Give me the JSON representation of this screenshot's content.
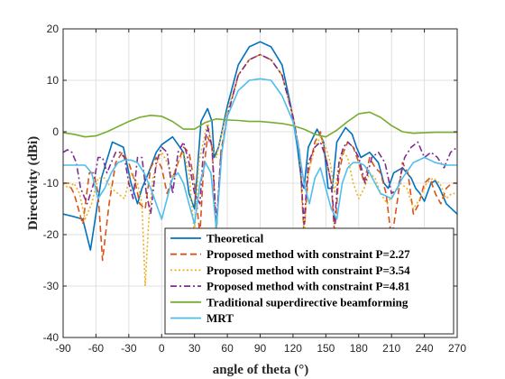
{
  "chart_data": {
    "type": "line",
    "title": "",
    "xlabel": "angle of theta (°)",
    "ylabel": "Directivity (dBi)",
    "xlim": [
      -90,
      270
    ],
    "ylim": [
      -40,
      20
    ],
    "xticks": [
      -90,
      -60,
      -30,
      0,
      30,
      60,
      90,
      120,
      150,
      180,
      210,
      240,
      270
    ],
    "yticks": [
      -40,
      -30,
      -20,
      -10,
      0,
      10,
      20
    ],
    "grid": true,
    "legend_position": "bottom-right",
    "series": [
      {
        "name": "Theoretical",
        "color": "#0072BD",
        "dash": "solid",
        "x": [
          -90,
          -80,
          -72,
          -65,
          -60,
          -55,
          -45,
          -35,
          -28,
          -22,
          -18,
          -12,
          -5,
          0,
          10,
          20,
          25,
          30,
          36,
          42,
          46,
          48,
          52,
          60,
          70,
          80,
          90,
          100,
          110,
          118,
          124,
          128,
          130,
          134,
          142,
          148,
          152,
          156,
          160,
          168,
          174,
          178,
          182,
          190,
          198,
          203,
          207,
          212,
          220,
          228,
          232,
          236,
          240,
          246,
          250,
          254,
          260,
          270
        ],
        "y": [
          -16,
          -16.5,
          -17,
          -23,
          -16,
          -9,
          -2,
          -3,
          -10,
          -14,
          -11,
          -8,
          -4,
          -2.5,
          -1,
          -4,
          -12,
          -15,
          2,
          4.5,
          2,
          -5,
          -3,
          5,
          13,
          16.5,
          17.5,
          16.5,
          13,
          5,
          -3,
          -10,
          -11,
          -3,
          0.5,
          -2,
          -11,
          -11,
          -2,
          0.8,
          -0.5,
          -3,
          -5,
          -4,
          -6,
          -10,
          -11,
          -8,
          -7,
          -9,
          -11,
          -12,
          -13.5,
          -10,
          -9.5,
          -11,
          -14,
          -16
        ]
      },
      {
        "name": "Proposed method with constraint P=2.27",
        "color": "#D95319",
        "dash": "dashed",
        "x": [
          -90,
          -85,
          -80,
          -72,
          -66,
          -62,
          -58,
          -54,
          -48,
          -42,
          -36,
          -30,
          -24,
          -20,
          -15,
          -10,
          -5,
          0,
          5,
          10,
          15,
          20,
          25,
          30,
          35,
          38,
          42,
          46,
          50,
          54,
          60,
          70,
          80,
          90,
          100,
          110,
          120,
          126,
          130,
          134,
          140,
          145,
          150,
          155,
          158,
          162,
          166,
          170,
          175,
          180,
          185,
          190,
          195,
          200,
          205,
          210,
          215,
          220,
          225,
          230,
          235,
          240,
          245,
          250,
          255,
          260,
          265,
          270
        ],
        "y": [
          -10,
          -10,
          -12,
          -18,
          -8,
          -8,
          -12,
          -25,
          -14,
          -6,
          -4,
          -6,
          -10,
          -14,
          -15,
          -7,
          -5,
          -7,
          -12,
          -9,
          -6,
          -3,
          -4,
          -10,
          -20,
          -8,
          -1,
          -3,
          -20,
          -4,
          3,
          11,
          14,
          15,
          14,
          11,
          3,
          -4,
          -20,
          -8,
          -2,
          0,
          -5,
          -10,
          -20,
          -8,
          -4,
          -2,
          -3,
          -6,
          -10,
          -5,
          -7,
          -8,
          -12,
          -21,
          -14,
          -6,
          -8,
          -16,
          -14,
          -10,
          -9,
          -12,
          -14,
          -11,
          -10,
          -10
        ]
      },
      {
        "name": "Proposed method with constraint P=3.54",
        "color": "#EDB120",
        "dash": "dotted",
        "x": [
          -90,
          -85,
          -80,
          -75,
          -70,
          -64,
          -58,
          -52,
          -46,
          -40,
          -34,
          -28,
          -22,
          -18,
          -15,
          -12,
          -8,
          -4,
          0,
          5,
          10,
          15,
          20,
          25,
          30,
          34,
          38,
          42,
          46,
          50,
          54,
          60,
          70,
          80,
          90,
          100,
          110,
          120,
          126,
          130,
          134,
          140,
          145,
          150,
          154,
          158,
          162,
          166,
          170,
          175,
          180,
          185,
          190,
          195,
          200,
          206,
          212,
          218,
          224,
          230,
          236,
          242,
          248,
          254,
          260,
          265,
          270
        ],
        "y": [
          -10,
          -11,
          -10,
          -12,
          -17,
          -14,
          -9,
          -9,
          -11,
          -12,
          -13,
          -8,
          -10,
          -14,
          -30,
          -18,
          -9,
          -6,
          -4,
          -6,
          -9,
          -6,
          -4,
          -8,
          -20,
          -6,
          -2,
          2,
          -3,
          -5,
          -1,
          4,
          11,
          14,
          15,
          14,
          11,
          3,
          -4,
          -20,
          -8,
          -3,
          -1,
          -3,
          -6,
          -12,
          -6,
          -4,
          -5,
          -10,
          -13,
          -11,
          -8,
          -9,
          -12,
          -14,
          -12,
          -10,
          -11,
          -15,
          -13,
          -10,
          -9,
          -10,
          -13,
          -12,
          -12
        ]
      },
      {
        "name": "Proposed method with constraint P=4.81",
        "color": "#7E2F8E",
        "dash": "dashdot",
        "x": [
          -90,
          -86,
          -82,
          -78,
          -74,
          -68,
          -62,
          -58,
          -54,
          -50,
          -46,
          -42,
          -38,
          -34,
          -30,
          -26,
          -22,
          -18,
          -14,
          -10,
          -5,
          0,
          5,
          10,
          15,
          20,
          25,
          30,
          35,
          38,
          42,
          46,
          50,
          54,
          60,
          70,
          80,
          90,
          100,
          110,
          120,
          126,
          130,
          134,
          140,
          145,
          150,
          155,
          158,
          162,
          166,
          170,
          175,
          180,
          186,
          192,
          198,
          204,
          210,
          216,
          222,
          228,
          234,
          240,
          246,
          252,
          258,
          264,
          270
        ],
        "y": [
          -4,
          -3.5,
          -4,
          -6,
          -11,
          -14,
          -10,
          -5,
          -5,
          -8,
          -6,
          -4,
          -4,
          -5,
          -10,
          -13,
          -5,
          -5,
          -12,
          -16,
          -6,
          -3,
          -4,
          -12,
          -4,
          -2,
          -6,
          -12,
          -14,
          -4,
          1,
          -3,
          -18,
          -5,
          3,
          11,
          14,
          15,
          14,
          11,
          3,
          -4,
          -18,
          -6,
          -3,
          -2,
          -5,
          -10,
          -18,
          -6,
          -3,
          -2,
          -3,
          -5,
          -10,
          -5,
          -4,
          -6,
          -12,
          -11,
          -5,
          -3,
          -2,
          -5,
          -4,
          -5,
          -7,
          -4,
          -3
        ]
      },
      {
        "name": "Traditional superdirective beamforming",
        "color": "#77AC30",
        "dash": "solid",
        "x": [
          -90,
          -80,
          -70,
          -60,
          -50,
          -40,
          -30,
          -20,
          -10,
          0,
          10,
          20,
          30,
          40,
          50,
          60,
          70,
          80,
          90,
          100,
          110,
          120,
          130,
          140,
          150,
          160,
          170,
          180,
          190,
          200,
          210,
          220,
          230,
          240,
          250,
          260,
          270
        ],
        "y": [
          -0.2,
          -0.5,
          -1,
          -0.8,
          0,
          1,
          2,
          2.8,
          3.2,
          3,
          2,
          0.5,
          0.5,
          1.8,
          2.5,
          2.3,
          2.2,
          2,
          2,
          1.8,
          1.6,
          1.2,
          0.5,
          -0.5,
          -1,
          0.3,
          2,
          3.5,
          3.8,
          2.8,
          1.2,
          0,
          -0.3,
          -0.2,
          -0.1,
          -0.1,
          -0.1
        ]
      },
      {
        "name": "MRT",
        "color": "#4DBEEE",
        "dash": "solid",
        "x": [
          -90,
          -80,
          -70,
          -64,
          -58,
          -52,
          -46,
          -40,
          -34,
          -28,
          -22,
          -16,
          -10,
          -5,
          0,
          5,
          10,
          15,
          20,
          25,
          30,
          35,
          40,
          45,
          50,
          55,
          60,
          70,
          80,
          90,
          100,
          110,
          120,
          125,
          130,
          135,
          140,
          145,
          150,
          155,
          160,
          165,
          170,
          175,
          180,
          185,
          190,
          200,
          210,
          220,
          230,
          240,
          250,
          260,
          270
        ],
        "y": [
          -6.5,
          -6.5,
          -6.5,
          -8,
          -13,
          -11,
          -8,
          -6,
          -5.5,
          -5.5,
          -6,
          -8,
          -11,
          -14,
          -17,
          -13,
          -9,
          -8,
          -10,
          -14,
          -18,
          -10,
          -6,
          -8,
          -19,
          -4,
          3,
          8,
          10,
          10.3,
          10,
          7,
          2,
          -3,
          -10,
          -14,
          -9,
          -7,
          -11,
          -15,
          -17,
          -10,
          -7,
          -6,
          -6,
          -6.5,
          -8,
          -12,
          -13,
          -9,
          -6,
          -5,
          -6,
          -6.5,
          -6.5
        ]
      }
    ]
  }
}
